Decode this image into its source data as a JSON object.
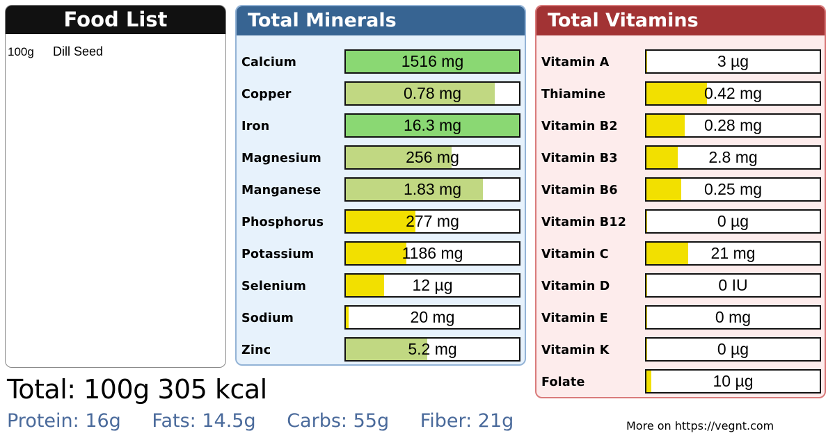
{
  "food_list": {
    "title": "Food List",
    "items": [
      {
        "qty": "100g",
        "name": "Dill Seed"
      }
    ]
  },
  "minerals": {
    "title": "Total Minerals",
    "header_color": "#376492",
    "items": [
      {
        "label": "Calcium",
        "value": "1516 mg",
        "fill_pct": 100,
        "color": "#8ad873"
      },
      {
        "label": "Copper",
        "value": "0.78 mg",
        "fill_pct": 86,
        "color": "#c1d882"
      },
      {
        "label": "Iron",
        "value": "16.3 mg",
        "fill_pct": 100,
        "color": "#8ad873"
      },
      {
        "label": "Magnesium",
        "value": "256 mg",
        "fill_pct": 61,
        "color": "#c1d882"
      },
      {
        "label": "Manganese",
        "value": "1.83 mg",
        "fill_pct": 79,
        "color": "#c1d882"
      },
      {
        "label": "Phosphorus",
        "value": "277 mg",
        "fill_pct": 40,
        "color": "#f2e000"
      },
      {
        "label": "Potassium",
        "value": "1186 mg",
        "fill_pct": 35,
        "color": "#f2e000"
      },
      {
        "label": "Selenium",
        "value": "12 µg",
        "fill_pct": 22,
        "color": "#f2e000"
      },
      {
        "label": "Sodium",
        "value": "20 mg",
        "fill_pct": 1.5,
        "color": "#f2e000"
      },
      {
        "label": "Zinc",
        "value": "5.2 mg",
        "fill_pct": 47,
        "color": "#c1d882"
      }
    ]
  },
  "vitamins": {
    "title": "Total Vitamins",
    "header_color": "#a23334",
    "items": [
      {
        "label": "Vitamin A",
        "value": "3 µg",
        "fill_pct": 0.5,
        "color": "#f2e000"
      },
      {
        "label": "Thiamine",
        "value": "0.42 mg",
        "fill_pct": 35,
        "color": "#f2e000"
      },
      {
        "label": "Vitamin B2",
        "value": "0.28 mg",
        "fill_pct": 22,
        "color": "#f2e000"
      },
      {
        "label": "Vitamin B3",
        "value": "2.8 mg",
        "fill_pct": 18,
        "color": "#f2e000"
      },
      {
        "label": "Vitamin B6",
        "value": "0.25 mg",
        "fill_pct": 20,
        "color": "#f2e000"
      },
      {
        "label": "Vitamin B12",
        "value": "0 µg",
        "fill_pct": 0.5,
        "color": "#f2e000"
      },
      {
        "label": "Vitamin C",
        "value": "21 mg",
        "fill_pct": 24,
        "color": "#f2e000"
      },
      {
        "label": "Vitamin D",
        "value": "0 IU",
        "fill_pct": 0.5,
        "color": "#f2e000"
      },
      {
        "label": "Vitamin E",
        "value": "0 mg",
        "fill_pct": 0.5,
        "color": "#f2e000"
      },
      {
        "label": "Vitamin K",
        "value": "0 µg",
        "fill_pct": 0.5,
        "color": "#f2e000"
      },
      {
        "label": "Folate",
        "value": "10 µg",
        "fill_pct": 3,
        "color": "#f2e000"
      }
    ]
  },
  "summary": {
    "total": "Total:  100g  305 kcal",
    "protein": "Protein: 16g",
    "fats": "Fats: 14.5g",
    "carbs": "Carbs: 55g",
    "fiber": "Fiber: 21g",
    "more": "More on  https://vegnt.com"
  }
}
